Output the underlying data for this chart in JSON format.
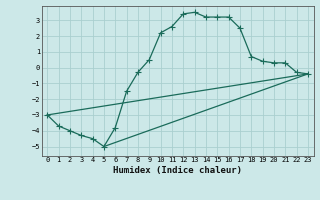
{
  "xlabel": "Humidex (Indice chaleur)",
  "background_color": "#cce8e8",
  "grid_color": "#aacfcf",
  "line_color": "#1a6b5a",
  "xlim": [
    -0.5,
    23.5
  ],
  "ylim": [
    -5.6,
    3.9
  ],
  "yticks": [
    3,
    2,
    1,
    0,
    -1,
    -2,
    -3,
    -4,
    -5
  ],
  "xticks": [
    0,
    1,
    2,
    3,
    4,
    5,
    6,
    7,
    8,
    9,
    10,
    11,
    12,
    13,
    14,
    15,
    16,
    17,
    18,
    19,
    20,
    21,
    22,
    23
  ],
  "line1_x": [
    0,
    1,
    2,
    3,
    4,
    5,
    6,
    7,
    8,
    9,
    10,
    11,
    12,
    13,
    14,
    15,
    16,
    17,
    18,
    19,
    20,
    21,
    22,
    23
  ],
  "line1_y": [
    -3.0,
    -3.7,
    -4.0,
    -4.3,
    -4.5,
    -5.0,
    -3.8,
    -1.5,
    -0.3,
    0.5,
    2.2,
    2.6,
    3.4,
    3.5,
    3.2,
    3.2,
    3.2,
    2.5,
    0.7,
    0.4,
    0.3,
    0.3,
    -0.3,
    -0.4
  ],
  "line3_x": [
    0,
    23
  ],
  "line3_y": [
    -3.0,
    -0.4
  ],
  "line4_x": [
    5,
    23
  ],
  "line4_y": [
    -5.0,
    -0.4
  ]
}
